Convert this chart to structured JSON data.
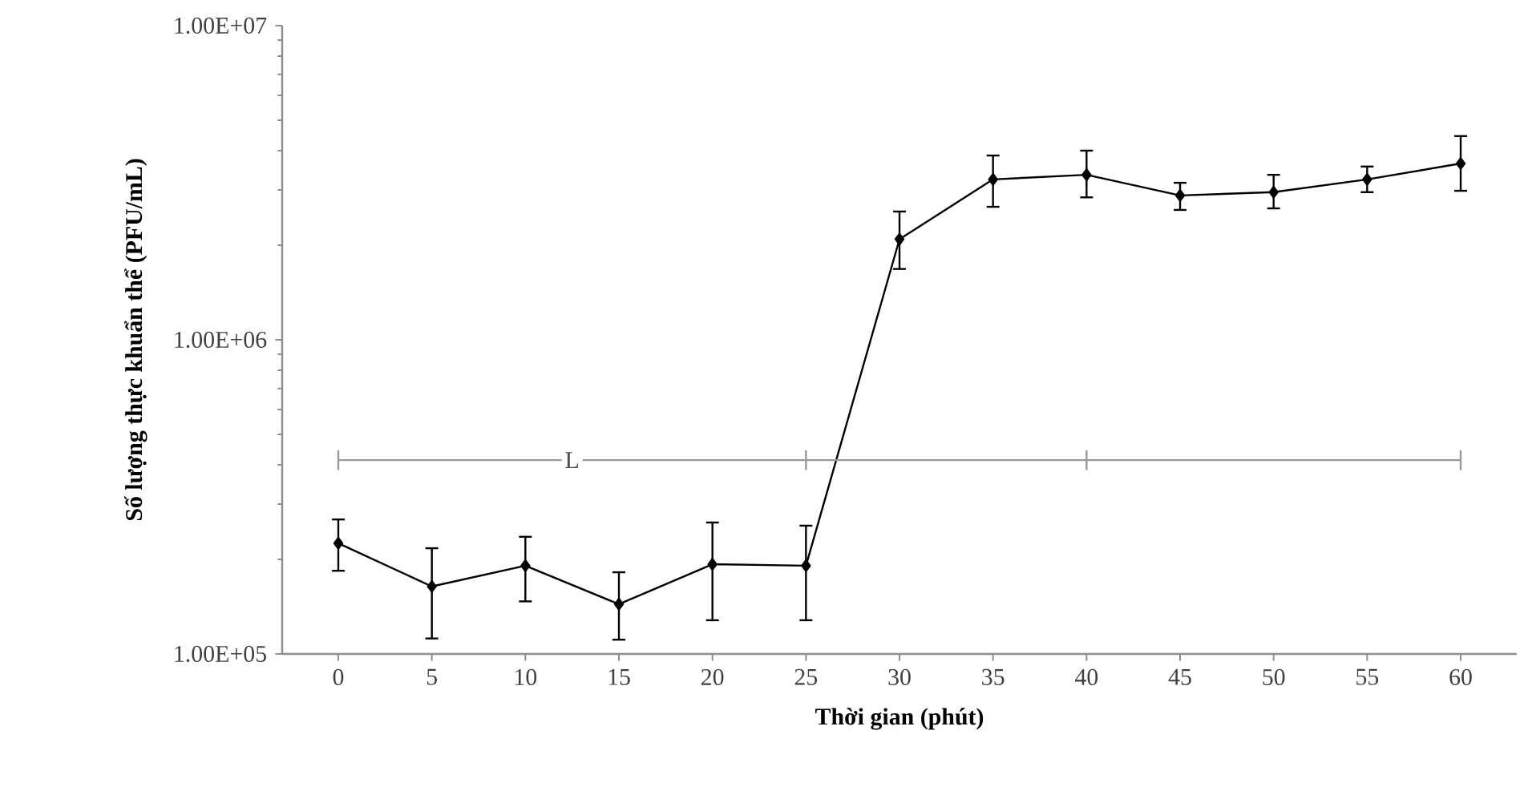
{
  "chart_data": {
    "type": "line",
    "xlabel": "Thời gian (phút)",
    "ylabel": "Số lượng thực khuẩn thể (PFU/mL)",
    "log": "y",
    "xlim": [
      -3,
      63
    ],
    "xticks": [
      0,
      5,
      10,
      15,
      20,
      25,
      30,
      35,
      40,
      45,
      50,
      55,
      60
    ],
    "ylim": [
      100000,
      10000000
    ],
    "yticks": [
      {
        "value": 100000,
        "label": "1.00E+05"
      },
      {
        "value": 1000000,
        "label": "1.00E+06"
      },
      {
        "value": 10000000,
        "label": "1.00E+07"
      }
    ],
    "marker": "diamond",
    "line_style": "solid",
    "grid": false,
    "series": [
      {
        "color": "#000000",
        "x": [
          0,
          5,
          10,
          15,
          20,
          25,
          30,
          35,
          40,
          45,
          50,
          55,
          60
        ],
        "values": [
          225000,
          164000,
          191000,
          144000,
          193000,
          191000,
          2090000,
          3240000,
          3350000,
          2880000,
          2950000,
          3240000,
          3640000
        ],
        "errors": [
          [
            184000,
            268000
          ],
          [
            112000,
            217000
          ],
          [
            147000,
            236000
          ],
          [
            111000,
            182000
          ],
          [
            128000,
            262000
          ],
          [
            128000,
            256000
          ],
          [
            1680000,
            2560000
          ],
          [
            2650000,
            3860000
          ],
          [
            2840000,
            4000000
          ],
          [
            2590000,
            3160000
          ],
          [
            2620000,
            3350000
          ],
          [
            2950000,
            3560000
          ],
          [
            2980000,
            4450000
          ]
        ]
      },
      {
        "color": "#999999",
        "marker": "none",
        "x": [
          0,
          25,
          40,
          60
        ],
        "values": [
          414000,
          414000,
          414000,
          414000
        ],
        "errors": [
          [
            385000,
            445000
          ],
          [
            385000,
            445000
          ],
          [
            385000,
            445000
          ],
          [
            385000,
            445000
          ]
        ]
      }
    ],
    "annotations": [
      {
        "text": "L",
        "x": 12.5,
        "y": 414000
      }
    ]
  }
}
